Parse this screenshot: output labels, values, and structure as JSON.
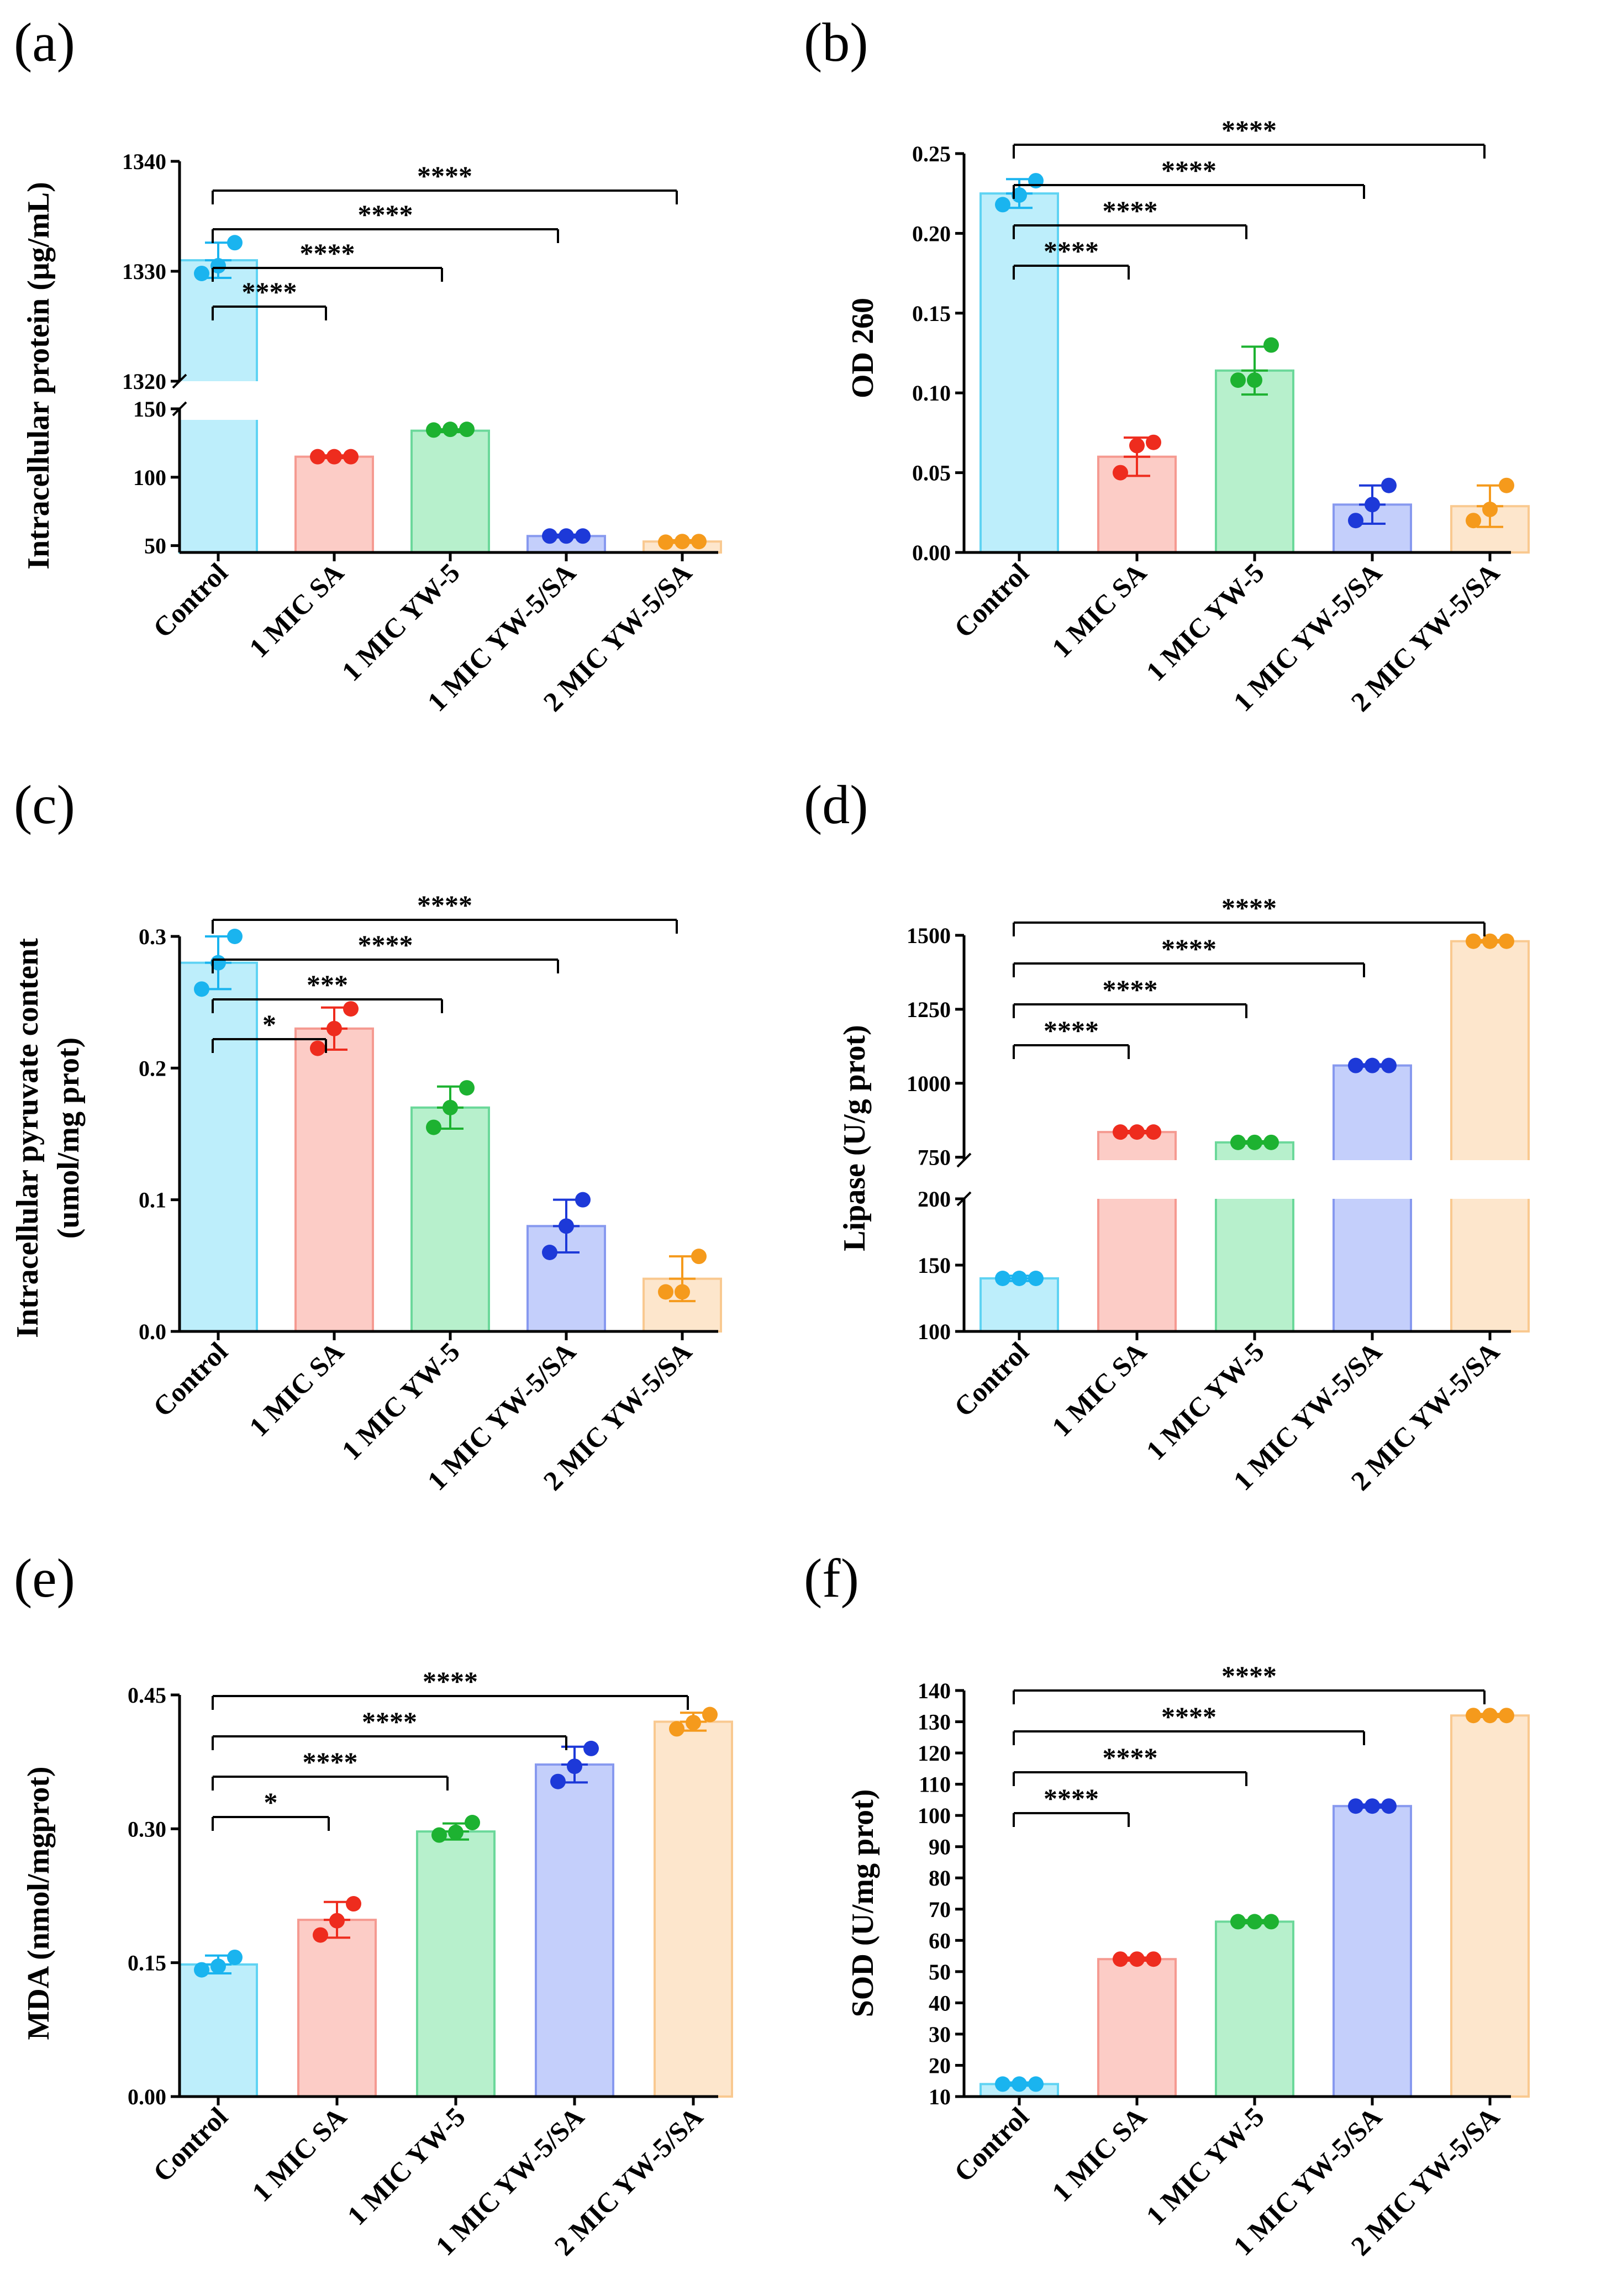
{
  "colors": {
    "Control": {
      "fill": "#bdeefb",
      "stroke": "#5fd3f3",
      "dot": "#1ab4ef"
    },
    "1 MIC SA": {
      "fill": "#fcccc6",
      "stroke": "#f59a91",
      "dot": "#ee2c1e"
    },
    "1 MIC YW-5": {
      "fill": "#b7f0cc",
      "stroke": "#6bd89a",
      "dot": "#1db231"
    },
    "1 MIC YW-5/SA": {
      "fill": "#c4cffb",
      "stroke": "#8799ef",
      "dot": "#1d39d8"
    },
    "2 MIC YW-5/SA": {
      "fill": "#fde6cc",
      "stroke": "#f9c990",
      "dot": "#f59a1c"
    }
  },
  "chart_data": [
    {
      "panel": "(a)",
      "type": "bar",
      "ylabel": "Intracellular protein (μg/mL)",
      "categories": [
        "Control",
        "1 MIC SA",
        "1 MIC YW-5",
        "1 MIC YW-5/SA",
        "2 MIC YW-5/SA"
      ],
      "values": [
        1331,
        115,
        134,
        57,
        53
      ],
      "errors": [
        1.6,
        1,
        1,
        1,
        1
      ],
      "points": [
        [
          1329.8,
          1330.5,
          1332.6
        ],
        [
          115,
          115,
          115
        ],
        [
          134.5,
          135,
          135
        ],
        [
          57,
          57,
          57
        ],
        [
          52.5,
          53,
          53
        ]
      ],
      "broken_axis": {
        "upper": {
          "range": [
            1320,
            1340
          ],
          "ticks": [
            1320,
            1330,
            1340
          ],
          "tick_labels": [
            "1320",
            "1330",
            "1340"
          ]
        },
        "lower": {
          "range": [
            45,
            150
          ],
          "ticks": [
            50,
            100,
            150
          ],
          "tick_labels": [
            "50",
            "100",
            "150"
          ]
        }
      },
      "significance": [
        {
          "from": 0,
          "to": 1,
          "label": "****"
        },
        {
          "from": 0,
          "to": 2,
          "label": "****"
        },
        {
          "from": 0,
          "to": 3,
          "label": "****"
        },
        {
          "from": 0,
          "to": 4,
          "label": "****"
        }
      ]
    },
    {
      "panel": "(b)",
      "type": "bar",
      "ylabel": "OD 260",
      "categories": [
        "Control",
        "1 MIC SA",
        "1 MIC YW-5",
        "1 MIC YW-5/SA",
        "2 MIC YW-5/SA"
      ],
      "values": [
        0.225,
        0.06,
        0.114,
        0.03,
        0.029
      ],
      "errors": [
        0.009,
        0.012,
        0.015,
        0.012,
        0.013
      ],
      "points": [
        [
          0.218,
          0.224,
          0.233
        ],
        [
          0.05,
          0.067,
          0.069
        ],
        [
          0.108,
          0.108,
          0.13
        ],
        [
          0.02,
          0.03,
          0.042
        ],
        [
          0.02,
          0.027,
          0.042
        ]
      ],
      "ylim": [
        0,
        0.25
      ],
      "ticks": [
        0,
        0.05,
        0.1,
        0.15,
        0.2,
        0.25
      ],
      "tick_labels": [
        "0.00",
        "0.05",
        "0.10",
        "0.15",
        "0.20",
        "0.25"
      ],
      "significance": [
        {
          "from": 0,
          "to": 1,
          "label": "****"
        },
        {
          "from": 0,
          "to": 2,
          "label": "****"
        },
        {
          "from": 0,
          "to": 3,
          "label": "****"
        },
        {
          "from": 0,
          "to": 4,
          "label": "****"
        }
      ]
    },
    {
      "panel": "(c)",
      "type": "bar",
      "ylabel": "Intracellular pyruvate content",
      "ylabel2": "(umol/mg prot)",
      "categories": [
        "Control",
        "1 MIC SA",
        "1 MIC YW-5",
        "1 MIC YW-5/SA",
        "2 MIC YW-5/SA"
      ],
      "values": [
        0.28,
        0.23,
        0.17,
        0.08,
        0.04
      ],
      "errors": [
        0.02,
        0.016,
        0.016,
        0.02,
        0.017
      ],
      "points": [
        [
          0.26,
          0.28,
          0.3
        ],
        [
          0.215,
          0.23,
          0.245
        ],
        [
          0.155,
          0.17,
          0.185
        ],
        [
          0.06,
          0.08,
          0.1
        ],
        [
          0.03,
          0.03,
          0.057
        ]
      ],
      "ylim": [
        0,
        0.3
      ],
      "ticks": [
        0,
        0.1,
        0.2,
        0.3
      ],
      "tick_labels": [
        "0.0",
        "0.1",
        "0.2",
        "0.3"
      ],
      "significance": [
        {
          "from": 0,
          "to": 1,
          "label": "*"
        },
        {
          "from": 0,
          "to": 2,
          "label": "***"
        },
        {
          "from": 0,
          "to": 3,
          "label": "****"
        },
        {
          "from": 0,
          "to": 4,
          "label": "****"
        }
      ]
    },
    {
      "panel": "(d)",
      "type": "bar",
      "ylabel": "Lipase (U/g prot)",
      "categories": [
        "Control",
        "1 MIC SA",
        "1 MIC YW-5",
        "1 MIC YW-5/SA",
        "2 MIC YW-5/SA"
      ],
      "values": [
        140,
        835,
        800,
        1060,
        1480
      ],
      "errors": [
        2,
        4,
        4,
        4,
        4
      ],
      "points": [
        [
          140,
          140,
          140
        ],
        [
          835,
          835,
          835
        ],
        [
          800,
          800,
          800
        ],
        [
          1060,
          1060,
          1060
        ],
        [
          1480,
          1480,
          1480
        ]
      ],
      "broken_axis": {
        "upper": {
          "range": [
            740,
            1500
          ],
          "ticks": [
            750,
            1000,
            1250,
            1500
          ],
          "tick_labels": [
            "750",
            "1000",
            "1250",
            "1500"
          ]
        },
        "lower": {
          "range": [
            100,
            200
          ],
          "ticks": [
            100,
            150,
            200
          ],
          "tick_labels": [
            "100",
            "150",
            "200"
          ]
        }
      },
      "significance": [
        {
          "from": 0,
          "to": 1,
          "label": "****"
        },
        {
          "from": 0,
          "to": 2,
          "label": "****"
        },
        {
          "from": 0,
          "to": 3,
          "label": "****"
        },
        {
          "from": 0,
          "to": 4,
          "label": "****"
        }
      ]
    },
    {
      "panel": "(e)",
      "type": "bar",
      "ylabel": "MDA (nmol/mgprot)",
      "categories": [
        "Control",
        "1 MIC SA",
        "1 MIC YW-5",
        "1 MIC YW-5/SA",
        "2 MIC YW-5/SA"
      ],
      "values": [
        0.148,
        0.198,
        0.297,
        0.372,
        0.42
      ],
      "errors": [
        0.01,
        0.02,
        0.009,
        0.02,
        0.01
      ],
      "points": [
        [
          0.142,
          0.146,
          0.156
        ],
        [
          0.181,
          0.197,
          0.216
        ],
        [
          0.293,
          0.296,
          0.307
        ],
        [
          0.353,
          0.37,
          0.39
        ],
        [
          0.412,
          0.419,
          0.428
        ]
      ],
      "ylim": [
        0,
        0.45
      ],
      "ticks": [
        0,
        0.15,
        0.3,
        0.45
      ],
      "tick_labels": [
        "0.00",
        "0.15",
        "0.30",
        "0.45"
      ],
      "significance": [
        {
          "from": 0,
          "to": 1,
          "label": "*"
        },
        {
          "from": 0,
          "to": 2,
          "label": "****"
        },
        {
          "from": 0,
          "to": 3,
          "label": "****"
        },
        {
          "from": 0,
          "to": 4,
          "label": "****"
        }
      ]
    },
    {
      "panel": "(f)",
      "type": "bar",
      "ylabel": "SOD (U/mg prot)",
      "categories": [
        "Control",
        "1 MIC SA",
        "1 MIC YW-5",
        "1 MIC YW-5/SA",
        "2 MIC YW-5/SA"
      ],
      "values": [
        14,
        54,
        66,
        103,
        132
      ],
      "errors": [
        0.5,
        0.5,
        0.5,
        0.5,
        0.5
      ],
      "points": [
        [
          14,
          14,
          14
        ],
        [
          54,
          54,
          54
        ],
        [
          66,
          66,
          66
        ],
        [
          103,
          103,
          103
        ],
        [
          132,
          132,
          132
        ]
      ],
      "ylim": [
        10,
        140
      ],
      "ticks": [
        10,
        20,
        30,
        40,
        50,
        60,
        70,
        80,
        90,
        100,
        110,
        120,
        130,
        140
      ],
      "tick_labels": [
        "10",
        "20",
        "30",
        "40",
        "50",
        "60",
        "70",
        "80",
        "90",
        "100",
        "110",
        "120",
        "130",
        "140"
      ],
      "significance": [
        {
          "from": 0,
          "to": 1,
          "label": "****"
        },
        {
          "from": 0,
          "to": 2,
          "label": "****"
        },
        {
          "from": 0,
          "to": 3,
          "label": "****"
        },
        {
          "from": 0,
          "to": 4,
          "label": "****"
        }
      ]
    }
  ]
}
